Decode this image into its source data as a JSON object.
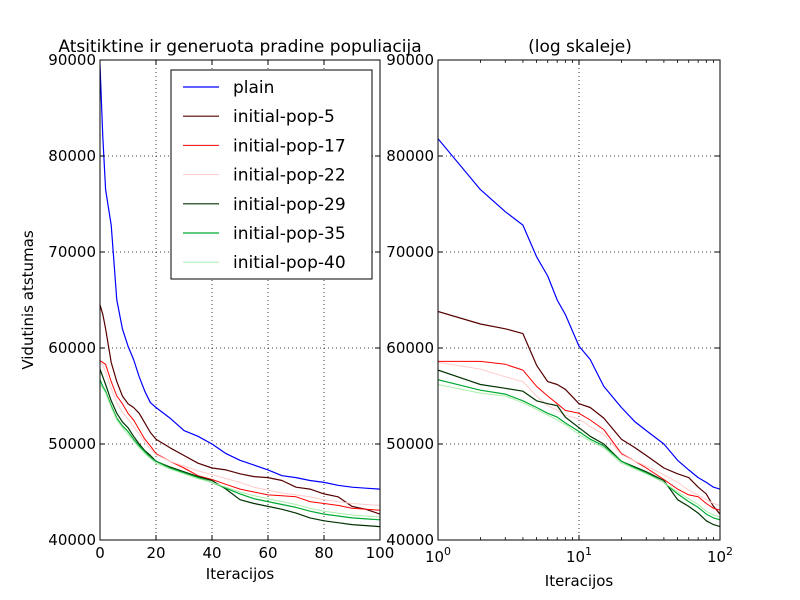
{
  "figure": {
    "title_left": "Atsitiktine ir generuota pradine populiacija",
    "title_right": "(log skaleje)"
  },
  "chart_data": [
    {
      "type": "line",
      "title": "Atsitiktine ir generuota pradine populiacija",
      "xlabel": "Iteracijos",
      "ylabel": "Vidutinis atstumas",
      "xscale": "linear",
      "xlim": [
        0,
        100
      ],
      "ylim": [
        40000,
        90000
      ],
      "xticks": [
        "0",
        "20",
        "40",
        "60",
        "80",
        "100"
      ],
      "yticks": [
        "40000",
        "50000",
        "60000",
        "70000",
        "80000",
        "90000"
      ],
      "grid": true,
      "legend_position": "top-right",
      "x": [
        0,
        1,
        2,
        4,
        6,
        8,
        10,
        12,
        14,
        16,
        18,
        20,
        25,
        30,
        35,
        40,
        45,
        50,
        55,
        60,
        65,
        70,
        75,
        80,
        85,
        90,
        95,
        100
      ],
      "series": [
        {
          "name": "plain",
          "color": "#0000ff",
          "width": 1.2,
          "values": [
            89500,
            82000,
            76500,
            72800,
            65000,
            62000,
            60200,
            58800,
            57000,
            55500,
            54300,
            53800,
            52700,
            51400,
            50800,
            50000,
            49000,
            48300,
            47800,
            47300,
            46700,
            46500,
            46200,
            46000,
            45700,
            45500,
            45400,
            45300
          ]
        },
        {
          "name": "initial-pop-5",
          "color": "#550000",
          "width": 1.2,
          "values": [
            64500,
            63500,
            62000,
            58500,
            56500,
            55000,
            54200,
            53800,
            53200,
            52200,
            51200,
            50500,
            49600,
            48800,
            48000,
            47500,
            47300,
            46900,
            46600,
            46500,
            46200,
            45500,
            45300,
            44800,
            44500,
            43500,
            43200,
            42700
          ]
        },
        {
          "name": "initial-pop-17",
          "color": "#ff0000",
          "width": 1.0,
          "values": [
            58700,
            58500,
            58300,
            56500,
            55000,
            54200,
            53200,
            52500,
            51500,
            50500,
            49800,
            49000,
            48200,
            47500,
            46700,
            46300,
            45800,
            45300,
            45000,
            44700,
            44600,
            44500,
            44000,
            43800,
            43600,
            43300,
            43200,
            43100
          ]
        },
        {
          "name": "initial-pop-22",
          "color": "#ffcccc",
          "width": 1.0,
          "values": [
            58500,
            58200,
            57500,
            55800,
            54300,
            53300,
            52600,
            51800,
            51000,
            50200,
            49500,
            48900,
            48200,
            47700,
            47200,
            46800,
            46400,
            46000,
            45500,
            45200,
            44900,
            44700,
            44500,
            44200,
            44000,
            43800,
            43700,
            43600
          ]
        },
        {
          "name": "initial-pop-29",
          "color": "#003300",
          "width": 1.2,
          "values": [
            57800,
            57000,
            56200,
            54500,
            53200,
            52300,
            51700,
            50800,
            50000,
            49300,
            48800,
            48200,
            47600,
            47100,
            46600,
            46200,
            45300,
            44200,
            43800,
            43500,
            43200,
            42800,
            42300,
            42000,
            41800,
            41600,
            41500,
            41400
          ]
        },
        {
          "name": "initial-pop-35",
          "color": "#00aa33",
          "width": 1.2,
          "values": [
            56700,
            56000,
            55500,
            54000,
            52700,
            51900,
            51300,
            50500,
            49800,
            49200,
            48600,
            48200,
            47500,
            47000,
            46500,
            46000,
            45400,
            44800,
            44300,
            44000,
            43700,
            43400,
            43000,
            42700,
            42500,
            42300,
            42200,
            42100
          ]
        },
        {
          "name": "initial-pop-40",
          "color": "#aaeeaa",
          "width": 1.0,
          "values": [
            56200,
            55800,
            55300,
            53800,
            52500,
            51700,
            51000,
            50300,
            49600,
            49000,
            48500,
            48000,
            47400,
            46900,
            46400,
            46000,
            45500,
            45000,
            44600,
            44300,
            44000,
            43700,
            43300,
            43000,
            42800,
            42600,
            42500,
            42400
          ]
        }
      ]
    },
    {
      "type": "line",
      "title": "(log skaleje)",
      "xlabel": "Iteracijos",
      "ylabel": "",
      "xscale": "log",
      "xlim": [
        1,
        100
      ],
      "ylim": [
        40000,
        90000
      ],
      "xticks": [
        "10^0",
        "10^1",
        "10^2"
      ],
      "yticks": [
        "40000",
        "50000",
        "60000",
        "70000",
        "80000",
        "90000"
      ],
      "grid": true,
      "x": [
        1,
        2,
        3,
        4,
        5,
        6,
        7,
        8,
        10,
        12,
        15,
        20,
        25,
        30,
        40,
        50,
        60,
        70,
        80,
        90,
        100
      ],
      "series": [
        {
          "name": "plain",
          "color": "#0000ff",
          "width": 1.2,
          "values": [
            81800,
            76500,
            74200,
            72800,
            69500,
            67500,
            65000,
            63500,
            60200,
            58800,
            56000,
            53800,
            52300,
            51400,
            50000,
            48300,
            47300,
            46500,
            46000,
            45500,
            45300
          ]
        },
        {
          "name": "initial-pop-5",
          "color": "#550000",
          "width": 1.2,
          "values": [
            63800,
            62500,
            62000,
            61500,
            58200,
            56500,
            56200,
            55700,
            54200,
            53800,
            52700,
            50500,
            49600,
            48800,
            47500,
            46900,
            46500,
            45500,
            44800,
            43500,
            42700
          ]
        },
        {
          "name": "initial-pop-17",
          "color": "#ff0000",
          "width": 1.0,
          "values": [
            58600,
            58600,
            58300,
            57700,
            56000,
            55000,
            54200,
            53500,
            53200,
            52500,
            51500,
            49000,
            48200,
            47500,
            46300,
            45300,
            44700,
            44500,
            43800,
            43300,
            43100
          ]
        },
        {
          "name": "initial-pop-22",
          "color": "#ffcccc",
          "width": 1.0,
          "values": [
            58500,
            57800,
            57000,
            56500,
            55000,
            54000,
            53500,
            53000,
            52600,
            51800,
            51000,
            48900,
            48200,
            47700,
            46800,
            46000,
            45200,
            44700,
            44200,
            43800,
            43600
          ]
        },
        {
          "name": "initial-pop-29",
          "color": "#003300",
          "width": 1.2,
          "values": [
            57700,
            56200,
            55800,
            55500,
            54500,
            54200,
            54000,
            52800,
            51700,
            50800,
            50000,
            48200,
            47600,
            47100,
            46200,
            44200,
            43500,
            42800,
            42000,
            41600,
            41400
          ]
        },
        {
          "name": "initial-pop-35",
          "color": "#00aa33",
          "width": 1.2,
          "values": [
            56700,
            55600,
            55200,
            54500,
            53800,
            53200,
            52800,
            52200,
            51300,
            50500,
            49800,
            48200,
            47500,
            47000,
            46000,
            44800,
            44000,
            43400,
            42700,
            42300,
            42100
          ]
        },
        {
          "name": "initial-pop-40",
          "color": "#aaeeaa",
          "width": 1.0,
          "values": [
            56200,
            55300,
            55000,
            54300,
            53600,
            53000,
            52500,
            52000,
            51000,
            50300,
            49600,
            48000,
            47400,
            46900,
            46000,
            45000,
            44300,
            43700,
            43000,
            42600,
            42400
          ]
        }
      ]
    }
  ]
}
